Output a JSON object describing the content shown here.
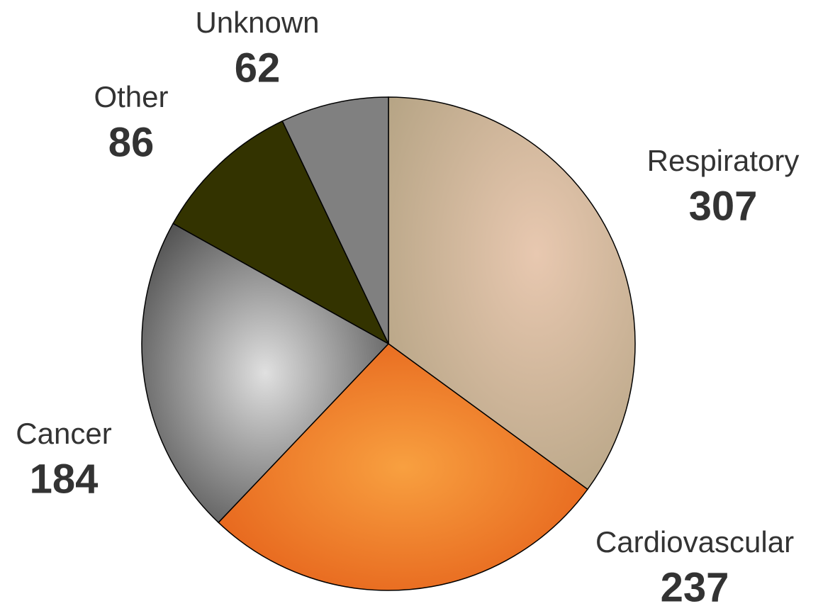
{
  "chart_data": {
    "type": "pie",
    "categories": [
      "Respiratory",
      "Cardiovascular",
      "Cancer",
      "Other",
      "Unknown"
    ],
    "values": [
      307,
      237,
      184,
      86,
      62
    ],
    "colors": [
      "#c9b79c",
      "#f2781e",
      "#9a9a9a",
      "#333300",
      "#808080"
    ]
  }
}
